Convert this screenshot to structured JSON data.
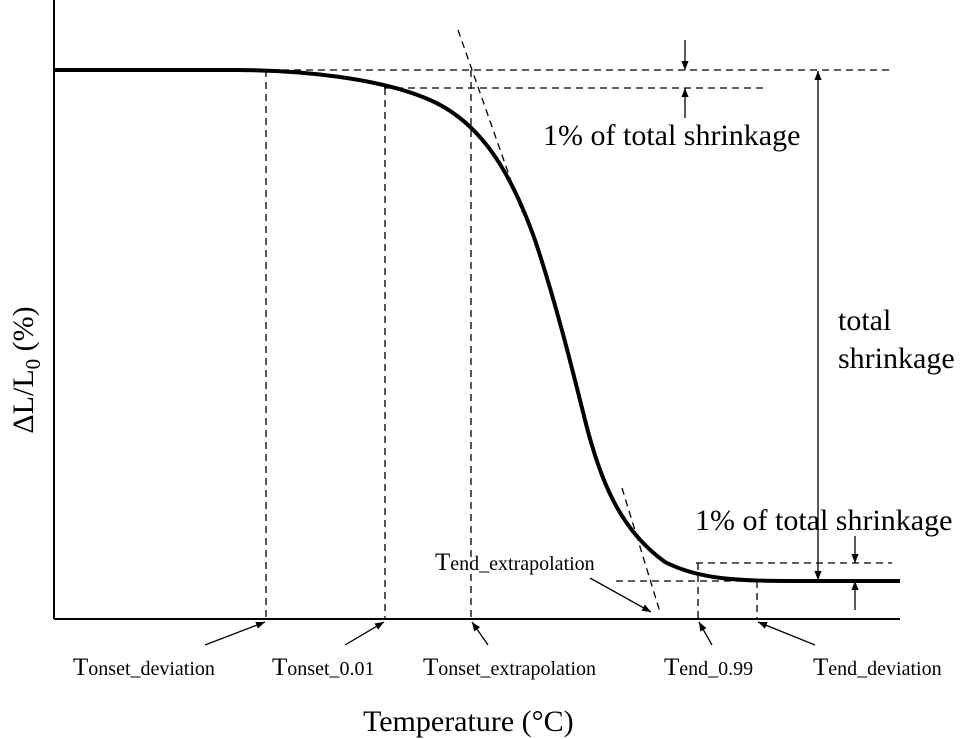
{
  "axes": {
    "xlabel": "Temperature (°C)",
    "ylabel_prefix": "ΔL/L",
    "ylabel_subscript": "0",
    "ylabel_suffix": " (%)"
  },
  "annotations": {
    "top_percent": "1% of total shrinkage",
    "bottom_percent": "1% of total shrinkage",
    "total_line1": "total",
    "total_line2": "shrinkage",
    "end_extrapolation_main": "T",
    "end_extrapolation_sub": "end_extrapolation"
  },
  "temperature_labels": [
    {
      "main": "T",
      "sub": "onset_deviation"
    },
    {
      "main": "T",
      "sub": "onset_0.01"
    },
    {
      "main": "T",
      "sub": "onset_extrapolation"
    },
    {
      "main": "T",
      "sub": "end_0.99"
    },
    {
      "main": "T",
      "sub": "end_deviation"
    }
  ],
  "colors": {
    "line": "#000000",
    "background": "#ffffff"
  }
}
